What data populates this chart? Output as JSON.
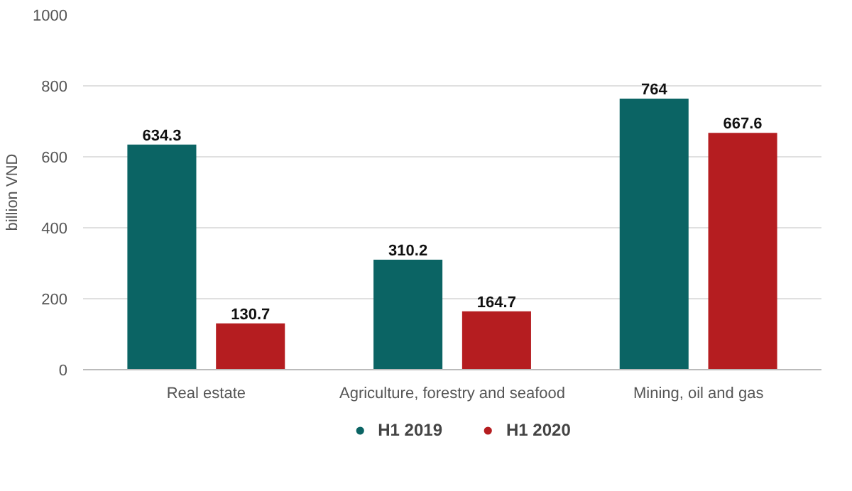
{
  "chart_data": {
    "type": "bar",
    "ylabel": "billion VND",
    "categories": [
      "Real estate",
      "Agriculture, forestry and seafood",
      "Mining, oil and gas"
    ],
    "series": [
      {
        "name": "H1 2019",
        "color": "#0b6464",
        "values": [
          634.3,
          310.2,
          764
        ]
      },
      {
        "name": "H1 2020",
        "color": "#b51d20",
        "values": [
          130.7,
          164.7,
          667.6
        ]
      }
    ],
    "ylim": [
      0,
      1000
    ],
    "yticks": [
      0,
      200,
      400,
      600,
      800,
      1000
    ],
    "grid": "y",
    "legend": "bottom",
    "marker": "circle",
    "data_labels": true
  }
}
